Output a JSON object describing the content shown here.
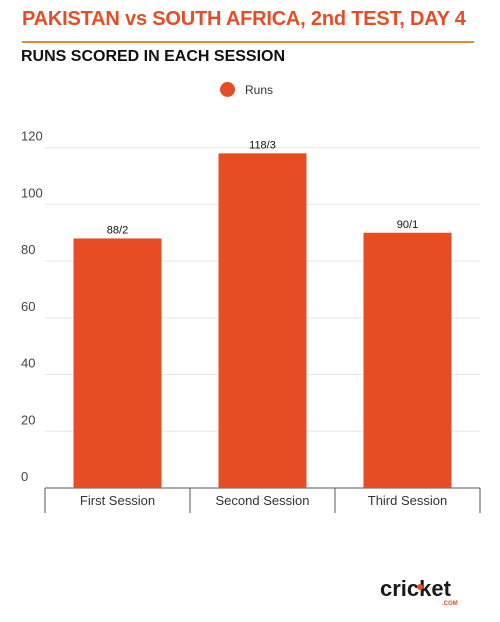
{
  "header": {
    "title": "PAKISTAN vs SOUTH AFRICA, 2nd TEST, DAY 4",
    "subtitle": "RUNS SCORED IN EACH SESSION"
  },
  "legend": {
    "label": "Runs",
    "color": "#e64d25"
  },
  "chart_data": {
    "type": "bar",
    "categories": [
      "First Session",
      "Second Session",
      "Third Session"
    ],
    "series": [
      {
        "name": "Runs",
        "values": [
          88,
          118,
          90
        ],
        "labels": [
          "88/2",
          "118/3",
          "90/1"
        ],
        "color": "#e64d25"
      }
    ],
    "yticks": [
      0,
      20,
      40,
      60,
      80,
      100,
      120
    ],
    "ylim": [
      0,
      128
    ],
    "grid": true,
    "legend_position": "top-center"
  },
  "branding": {
    "logo_name": "cricket.com"
  }
}
